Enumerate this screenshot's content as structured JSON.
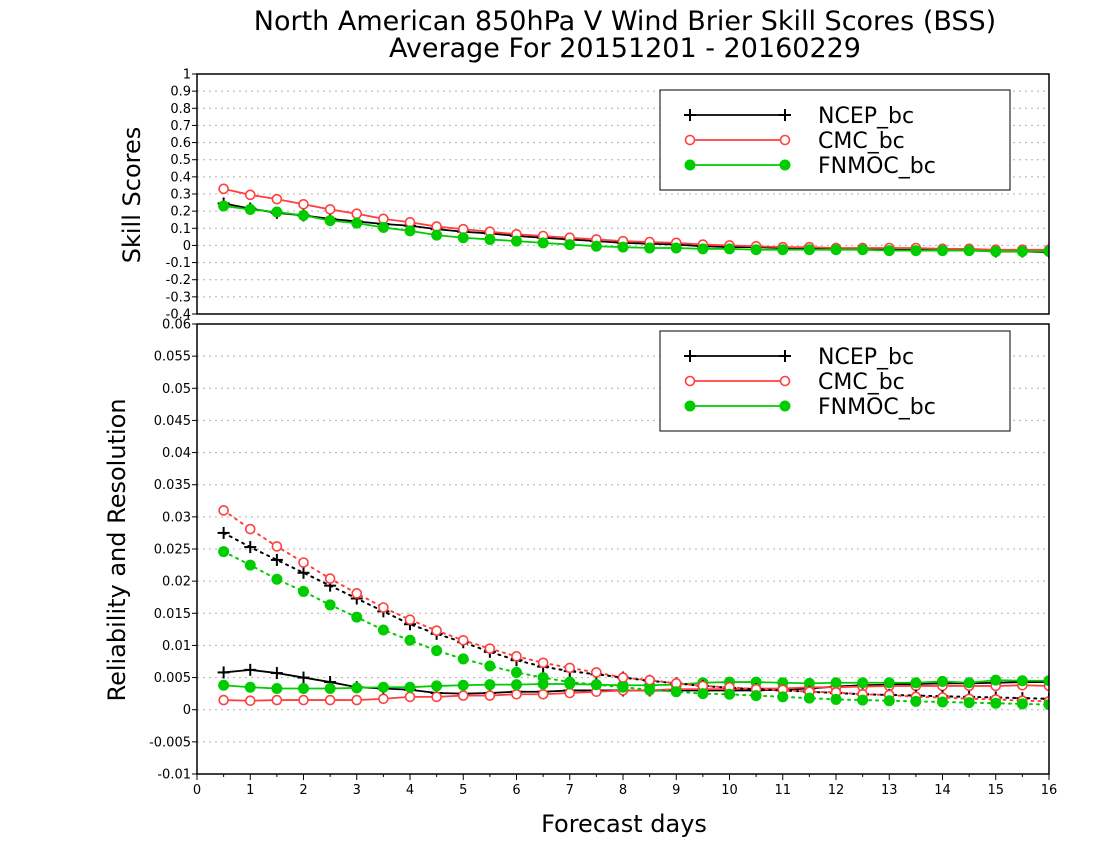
{
  "chart_data": [
    {
      "type": "line",
      "panel": "top",
      "title": "North American 850hPa V Wind Brier Skill Scores (BSS)",
      "subtitle": "Average For 20151201 - 20160229",
      "ylabel": "Skill Scores",
      "xlabel": "",
      "ylim": [
        -0.4,
        1
      ],
      "xlim": [
        0,
        16
      ],
      "yticks": [
        -0.4,
        -0.3,
        -0.2,
        -0.1,
        0,
        0.1,
        0.2,
        0.3,
        0.4,
        0.5,
        0.6,
        0.7,
        0.8,
        0.9,
        1
      ],
      "ytick_labels": [
        "-0.4",
        "-0.3",
        "-0.2",
        "-0.1",
        "0",
        "0.1",
        "0.2",
        "0.3",
        "0.4",
        "0.5",
        "0.6",
        "0.7",
        "0.8",
        "0.9",
        "1"
      ],
      "grid": true,
      "legend_position": "top-right",
      "x": [
        0.5,
        1,
        1.5,
        2,
        2.5,
        3,
        3.5,
        4,
        4.5,
        5,
        5.5,
        6,
        6.5,
        7,
        7.5,
        8,
        8.5,
        9,
        9.5,
        10,
        10.5,
        11,
        11.5,
        12,
        12.5,
        13,
        13.5,
        14,
        14.5,
        15,
        15.5,
        16
      ],
      "series": [
        {
          "name": "NCEP_bc",
          "color": "#000000",
          "marker": "plus",
          "line": "solid",
          "values": [
            0.245,
            0.215,
            0.19,
            0.175,
            0.155,
            0.14,
            0.125,
            0.115,
            0.095,
            0.08,
            0.07,
            0.055,
            0.045,
            0.035,
            0.025,
            0.015,
            0.01,
            0.005,
            -0.005,
            -0.01,
            -0.01,
            -0.015,
            -0.015,
            -0.02,
            -0.02,
            -0.025,
            -0.025,
            -0.025,
            -0.025,
            -0.035,
            -0.035,
            -0.04
          ]
        },
        {
          "name": "CMC_bc",
          "color": "#ff4040",
          "marker": "open-circle",
          "line": "solid",
          "values": [
            0.33,
            0.295,
            0.27,
            0.24,
            0.21,
            0.185,
            0.155,
            0.135,
            0.11,
            0.095,
            0.08,
            0.065,
            0.055,
            0.045,
            0.035,
            0.025,
            0.02,
            0.015,
            0.005,
            0.0,
            -0.005,
            -0.01,
            -0.01,
            -0.015,
            -0.015,
            -0.015,
            -0.015,
            -0.02,
            -0.02,
            -0.025,
            -0.025,
            -0.025
          ]
        },
        {
          "name": "FNMOC_bc",
          "color": "#00cc00",
          "marker": "filled-circle",
          "line": "solid",
          "values": [
            0.23,
            0.21,
            0.195,
            0.175,
            0.145,
            0.13,
            0.105,
            0.085,
            0.06,
            0.045,
            0.035,
            0.025,
            0.015,
            0.005,
            -0.005,
            -0.01,
            -0.015,
            -0.015,
            -0.02,
            -0.02,
            -0.025,
            -0.025,
            -0.025,
            -0.025,
            -0.025,
            -0.03,
            -0.03,
            -0.03,
            -0.03,
            -0.035,
            -0.035,
            -0.035
          ]
        }
      ]
    },
    {
      "type": "line",
      "panel": "bottom",
      "title": "",
      "ylabel": "Reliability and Resolution",
      "xlabel": "Forecast days",
      "ylim": [
        -0.01,
        0.06
      ],
      "xlim": [
        0,
        16
      ],
      "yticks": [
        -0.01,
        -0.005,
        0,
        0.005,
        0.01,
        0.015,
        0.02,
        0.025,
        0.03,
        0.035,
        0.04,
        0.045,
        0.05,
        0.055,
        0.06
      ],
      "ytick_labels": [
        "-0.01",
        "-0.005",
        "0",
        "0.005",
        "0.01",
        "0.015",
        "0.02",
        "0.025",
        "0.03",
        "0.035",
        "0.04",
        "0.045",
        "0.05",
        "0.055",
        "0.06"
      ],
      "xticks": [
        0,
        1,
        2,
        3,
        4,
        5,
        6,
        7,
        8,
        9,
        10,
        11,
        12,
        13,
        14,
        15,
        16
      ],
      "xtick_labels": [
        "0",
        "1",
        "2",
        "3",
        "4",
        "5",
        "6",
        "7",
        "8",
        "9",
        "10",
        "11",
        "12",
        "13",
        "14",
        "15",
        "16"
      ],
      "grid": true,
      "legend_position": "top-right",
      "x": [
        0.5,
        1,
        1.5,
        2,
        2.5,
        3,
        3.5,
        4,
        4.5,
        5,
        5.5,
        6,
        6.5,
        7,
        7.5,
        8,
        8.5,
        9,
        9.5,
        10,
        10.5,
        11,
        11.5,
        12,
        12.5,
        13,
        13.5,
        14,
        14.5,
        15,
        15.5,
        16
      ],
      "series": [
        {
          "name": "NCEP_bc",
          "color": "#000000",
          "marker": "plus",
          "line": "solid",
          "values": [
            0.0058,
            0.0062,
            0.0057,
            0.005,
            0.0043,
            0.0035,
            0.0033,
            0.0031,
            0.0026,
            0.0025,
            0.0026,
            0.0028,
            0.0028,
            0.003,
            0.003,
            0.003,
            0.003,
            0.003,
            0.003,
            0.003,
            0.003,
            0.0031,
            0.0033,
            0.0036,
            0.0038,
            0.0039,
            0.004,
            0.0041,
            0.0041,
            0.0042,
            0.0043,
            0.0043
          ]
        },
        {
          "name": "CMC_bc",
          "color": "#ff4040",
          "marker": "open-circle",
          "line": "solid",
          "values": [
            0.0015,
            0.0014,
            0.0015,
            0.0015,
            0.0015,
            0.0015,
            0.0017,
            0.002,
            0.002,
            0.0022,
            0.0022,
            0.0024,
            0.0024,
            0.0026,
            0.0028,
            0.003,
            0.003,
            0.0032,
            0.0032,
            0.0032,
            0.0033,
            0.0033,
            0.0035,
            0.0035,
            0.0036,
            0.0037,
            0.0037,
            0.0037,
            0.0037,
            0.0037,
            0.0038,
            0.0037
          ]
        },
        {
          "name": "FNMOC_bc",
          "color": "#00cc00",
          "marker": "filled-circle",
          "line": "solid",
          "values": [
            0.0038,
            0.0035,
            0.0033,
            0.0033,
            0.0033,
            0.0034,
            0.0035,
            0.0035,
            0.0037,
            0.0038,
            0.0039,
            0.0039,
            0.004,
            0.004,
            0.0039,
            0.0038,
            0.0038,
            0.0039,
            0.0042,
            0.0043,
            0.0043,
            0.0042,
            0.0041,
            0.0042,
            0.0042,
            0.0042,
            0.0042,
            0.0044,
            0.0042,
            0.0046,
            0.0045,
            0.0045
          ]
        },
        {
          "name": "",
          "color": "#000000",
          "marker": "plus",
          "line": "dotted",
          "values": [
            0.0275,
            0.0253,
            0.0233,
            0.0213,
            0.0193,
            0.0173,
            0.0153,
            0.0133,
            0.0118,
            0.0105,
            0.009,
            0.0077,
            0.0067,
            0.006,
            0.0055,
            0.005,
            0.0045,
            0.0041,
            0.0037,
            0.0034,
            0.0032,
            0.003,
            0.0028,
            0.0026,
            0.0024,
            0.0023,
            0.0022,
            0.0021,
            0.002,
            0.0019,
            0.0018,
            0.0017
          ]
        },
        {
          "name": "",
          "color": "#ff4040",
          "marker": "open-circle",
          "line": "dotted",
          "values": [
            0.031,
            0.0281,
            0.0254,
            0.0229,
            0.0204,
            0.0181,
            0.0159,
            0.014,
            0.0123,
            0.0108,
            0.0095,
            0.0083,
            0.0073,
            0.0065,
            0.0058,
            0.005,
            0.0046,
            0.0041,
            0.0037,
            0.0035,
            0.0032,
            0.0031,
            0.0028,
            0.0027,
            0.0024,
            0.0023,
            0.002,
            0.0019,
            0.0017,
            0.0016,
            0.0014,
            0.0013
          ]
        },
        {
          "name": "",
          "color": "#00cc00",
          "marker": "filled-circle",
          "line": "dotted",
          "values": [
            0.0246,
            0.0225,
            0.0203,
            0.0184,
            0.0163,
            0.0144,
            0.0124,
            0.0108,
            0.0092,
            0.0079,
            0.0068,
            0.0058,
            0.005,
            0.0043,
            0.0039,
            0.0035,
            0.0031,
            0.0028,
            0.0025,
            0.0024,
            0.0022,
            0.002,
            0.0018,
            0.0016,
            0.0015,
            0.0014,
            0.0013,
            0.0012,
            0.0011,
            0.001,
            0.0009,
            0.0008
          ]
        }
      ]
    }
  ]
}
